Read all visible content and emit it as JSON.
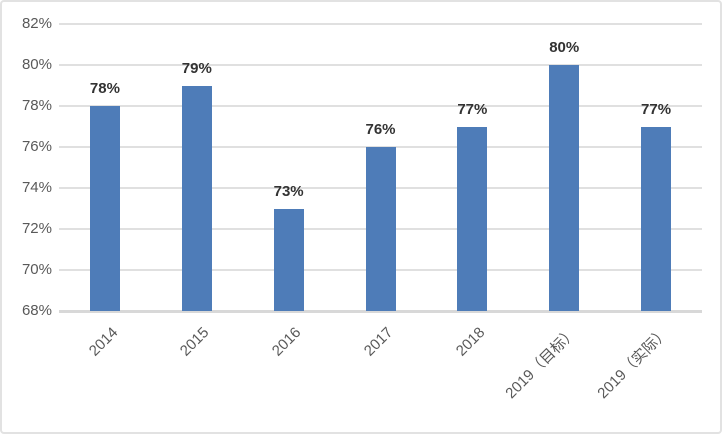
{
  "chart_data": {
    "type": "bar",
    "title": "",
    "xlabel": "",
    "ylabel": "",
    "categories": [
      "2014",
      "2015",
      "2016",
      "2017",
      "2018",
      "2019（目标）",
      "2019（实际）"
    ],
    "values": [
      78,
      79,
      73,
      76,
      77,
      80,
      77
    ],
    "data_labels": [
      "78%",
      "79%",
      "73%",
      "76%",
      "77%",
      "80%",
      "77%"
    ],
    "ylim": [
      68,
      82
    ],
    "ytick_step": 2,
    "ytick_values": [
      68,
      70,
      72,
      74,
      76,
      78,
      80,
      82
    ],
    "ytick_labels": [
      "68%",
      "70%",
      "72%",
      "74%",
      "76%",
      "78%",
      "80%",
      "82%"
    ],
    "grid": true,
    "legend": false,
    "colors": {
      "bar_fill": "#4E7CB8",
      "gridline": "#e0e0e0",
      "axis_baseline": "#d8d8d8",
      "tick_label": "#595959",
      "data_label": "#333333",
      "background": "#ffffff"
    }
  }
}
